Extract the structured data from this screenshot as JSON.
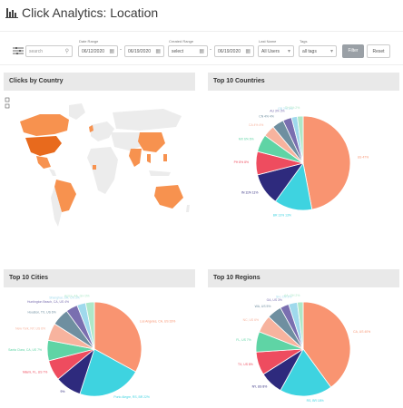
{
  "header": {
    "title": "Click Analytics: Location"
  },
  "filters": {
    "search_placeholder": "search",
    "date_range_label": "Date Range",
    "date_from": "06/12/2020",
    "date_to": "06/19/2020",
    "created_range_label": "Created Range",
    "created_from": "select",
    "created_to": "06/19/2020",
    "last_name_label": "Last Name",
    "users_value": "All Users",
    "tags_label": "Tags",
    "tags_value": "all tags",
    "filter_label": "Filter",
    "reset_label": "Reset"
  },
  "panels": {
    "map": {
      "title": "Clicks by Country"
    },
    "countries": {
      "title": "Top 10 Countries"
    },
    "cities": {
      "title": "Top 10 Cities"
    },
    "regions": {
      "title": "Top 10 Regions"
    }
  },
  "colors": {
    "coral": "#f99471",
    "cyan": "#3ed3e0",
    "navy": "#2e2a7d",
    "red": "#ee4c5f",
    "peach": "#f7b39e",
    "green": "#5fd4a5",
    "slate": "#6f8fa0",
    "purple": "#7a6fb0",
    "lightblue": "#9fd9ec",
    "mint": "#aee8c8",
    "map_highlight": "#f7924f",
    "map_dark": "#e86a1d",
    "map_base": "#ececec"
  },
  "chart_data": [
    {
      "type": "pie",
      "title": "Top 10 Countries",
      "slices": [
        {
          "label": "US 47%",
          "value": 47,
          "color": "#f99471"
        },
        {
          "label": "BR 13% 13%",
          "value": 13,
          "color": "#3ed3e0"
        },
        {
          "label": "IN 11% 11%",
          "value": 11,
          "color": "#2e2a7d"
        },
        {
          "label": "PH 8% 8%",
          "value": 8,
          "color": "#ee4c5f"
        },
        {
          "label": "MX 6% 6%",
          "value": 6,
          "color": "#5fd4a5"
        },
        {
          "label": "CA 4% 4%",
          "value": 4,
          "color": "#f7b39e"
        },
        {
          "label": "CN 4% 4%",
          "value": 4,
          "color": "#6f8fa0"
        },
        {
          "label": "AU 3% 3%",
          "value": 3,
          "color": "#7a6fb0"
        },
        {
          "label": "GB 2% 2%",
          "value": 2,
          "color": "#9fd9ec"
        },
        {
          "label": "TH 2% 2%",
          "value": 2,
          "color": "#aee8c8"
        }
      ]
    },
    {
      "type": "pie",
      "title": "Top 10 Cities",
      "slices": [
        {
          "label": "Los Angeles, CA, US 33%",
          "value": 33,
          "color": "#f99471"
        },
        {
          "label": "Porto Alegre, RS, BR 22%",
          "value": 22,
          "color": "#3ed3e0"
        },
        {
          "label": "9%",
          "value": 9,
          "color": "#2e2a7d"
        },
        {
          "label": "Miami, FL, US 7%",
          "value": 7,
          "color": "#ee4c5f"
        },
        {
          "label": "Santa Clara, CA, US 7%",
          "value": 7,
          "color": "#5fd4a5"
        },
        {
          "label": "New York, NY, US 6%",
          "value": 6,
          "color": "#f7b39e"
        },
        {
          "label": "Houston, TX, US 6%",
          "value": 6,
          "color": "#6f8fa0"
        },
        {
          "label": "Huntington Beach, CA, US 4%",
          "value": 4,
          "color": "#7a6fb0"
        },
        {
          "label": "Shanghai, SH, CN 3%",
          "value": 3,
          "color": "#9fd9ec"
        },
        {
          "label": "Accra, AA, GH 3%",
          "value": 3,
          "color": "#aee8c8"
        }
      ]
    },
    {
      "type": "pie",
      "title": "Top 10 Regions",
      "slices": [
        {
          "label": "CA, US 40%",
          "value": 40,
          "color": "#f99471"
        },
        {
          "label": "RS, BR 18%",
          "value": 18,
          "color": "#3ed3e0"
        },
        {
          "label": "NY, US 8%",
          "value": 8,
          "color": "#2e2a7d"
        },
        {
          "label": "TX, US 8%",
          "value": 8,
          "color": "#ee4c5f"
        },
        {
          "label": "FL, US 7%",
          "value": 7,
          "color": "#5fd4a5"
        },
        {
          "label": "NC, US 6%",
          "value": 6,
          "color": "#f7b39e"
        },
        {
          "label": "WA, US 5%",
          "value": 5,
          "color": "#6f8fa0"
        },
        {
          "label": "GA, US 3%",
          "value": 3,
          "color": "#7a6fb0"
        },
        {
          "label": "SH, CN 3%",
          "value": 3,
          "color": "#9fd9ec"
        },
        {
          "label": "AA, GH 2%",
          "value": 2,
          "color": "#aee8c8"
        }
      ]
    }
  ]
}
